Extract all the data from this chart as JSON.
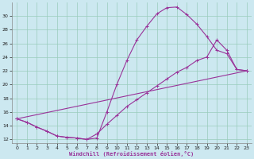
{
  "bg_color": "#cce8f0",
  "line_color": "#993399",
  "grid_color": "#99ccbb",
  "xlim": [
    -0.5,
    23.5
  ],
  "ylim": [
    11.5,
    32
  ],
  "yticks": [
    12,
    14,
    16,
    18,
    20,
    22,
    24,
    26,
    28,
    30
  ],
  "xticks": [
    0,
    1,
    2,
    3,
    4,
    5,
    6,
    7,
    8,
    9,
    10,
    11,
    12,
    13,
    14,
    15,
    16,
    17,
    18,
    19,
    20,
    21,
    22,
    23
  ],
  "xlabel": "Windchill (Refroidissement éolien,°C)",
  "line1_x": [
    0,
    1,
    2,
    3,
    4,
    5,
    6,
    7,
    8,
    9,
    10,
    11,
    12,
    13,
    14,
    15,
    16,
    17,
    18,
    19,
    20,
    21,
    22,
    23
  ],
  "line1_y": [
    15.0,
    14.5,
    13.8,
    13.2,
    12.5,
    12.3,
    12.2,
    12.0,
    12.2,
    16.0,
    20.0,
    23.5,
    26.5,
    28.5,
    30.3,
    31.2,
    31.3,
    30.2,
    28.8,
    27.0,
    25.0,
    24.5,
    22.2,
    22.0
  ],
  "line2_x": [
    0,
    1,
    2,
    3,
    4,
    5,
    6,
    7,
    8,
    9,
    10,
    11,
    12,
    13,
    14,
    15,
    16,
    17,
    18,
    19,
    20,
    21,
    22,
    23
  ],
  "line2_y": [
    15.0,
    14.5,
    13.8,
    13.2,
    12.5,
    12.3,
    12.2,
    12.0,
    12.8,
    14.2,
    15.5,
    16.8,
    17.8,
    18.8,
    19.8,
    20.8,
    21.8,
    22.5,
    23.5,
    24.0,
    26.5,
    25.0,
    22.2,
    22.0
  ],
  "line3_x": [
    0,
    23
  ],
  "line3_y": [
    15.0,
    22.0
  ]
}
